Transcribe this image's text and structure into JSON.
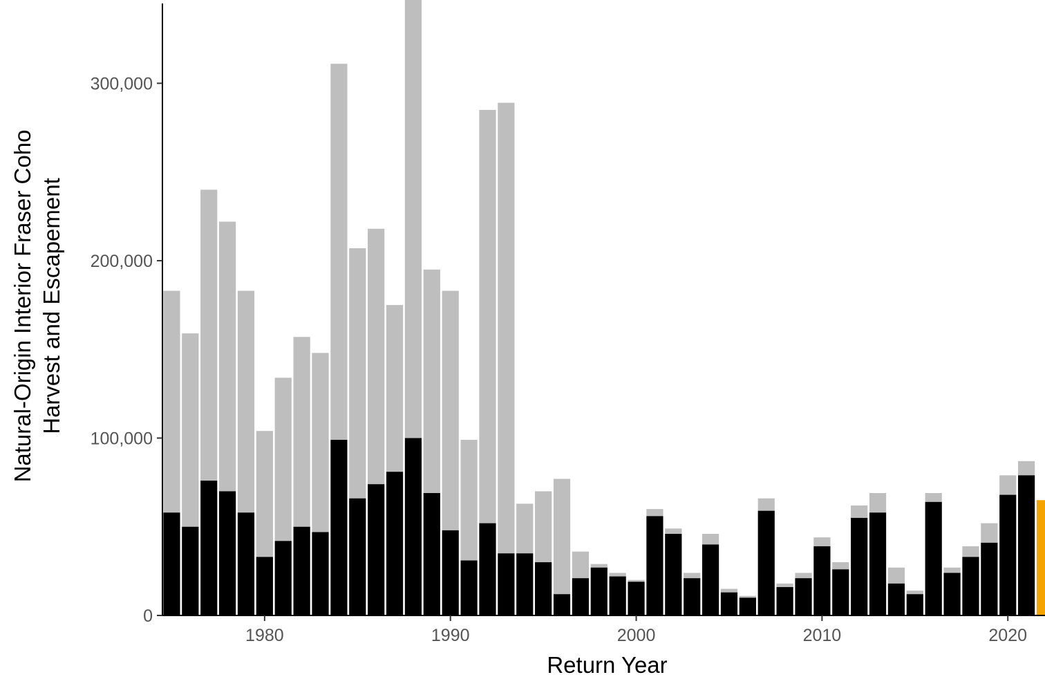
{
  "chart_data": {
    "type": "bar",
    "stacked": true,
    "xlabel": "Return Year",
    "ylabel": [
      "Natural-Origin Interior Fraser Coho",
      "Harvest and Escapement"
    ],
    "xlim": [
      1974.5,
      2022
    ],
    "ylim": [
      0,
      345000
    ],
    "x_ticks": [
      1980,
      1990,
      2000,
      2010,
      2020
    ],
    "y_ticks": [
      {
        "value": 0,
        "label": "0"
      },
      {
        "value": 100000,
        "label": "100,000"
      },
      {
        "value": 200000,
        "label": "200,000"
      },
      {
        "value": 300000,
        "label": "300,000"
      }
    ],
    "grid": false,
    "colors": {
      "escapement": "#000000",
      "harvest": "#bebebe",
      "highlight": "#f5a300"
    },
    "years": [
      1975,
      1976,
      1977,
      1978,
      1979,
      1980,
      1981,
      1982,
      1983,
      1984,
      1985,
      1986,
      1987,
      1988,
      1989,
      1990,
      1991,
      1992,
      1993,
      1994,
      1995,
      1996,
      1997,
      1998,
      1999,
      2000,
      2001,
      2002,
      2003,
      2004,
      2005,
      2006,
      2007,
      2008,
      2009,
      2010,
      2011,
      2012,
      2013,
      2014,
      2015,
      2016,
      2017,
      2018,
      2019,
      2020,
      2021,
      2022
    ],
    "series": [
      {
        "key": "escapement",
        "values": [
          58000,
          50000,
          76000,
          70000,
          58000,
          33000,
          42000,
          50000,
          47000,
          99000,
          66000,
          74000,
          81000,
          100000,
          69000,
          48000,
          31000,
          52000,
          35000,
          35000,
          30000,
          12000,
          21000,
          27000,
          22000,
          19000,
          56000,
          46000,
          21000,
          40000,
          13000,
          10000,
          59000,
          16000,
          21000,
          39000,
          26000,
          55000,
          58000,
          18000,
          12000,
          64000,
          24000,
          33000,
          41000,
          68000,
          79000,
          65000
        ]
      },
      {
        "key": "harvest",
        "values": [
          125000,
          109000,
          164000,
          152000,
          125000,
          71000,
          92000,
          107000,
          101000,
          212000,
          141000,
          144000,
          94000,
          248000,
          126000,
          135000,
          68000,
          233000,
          254000,
          28000,
          40000,
          65000,
          15000,
          2000,
          2000,
          1000,
          4000,
          3000,
          3000,
          6000,
          2000,
          1000,
          7000,
          2000,
          3000,
          5000,
          4000,
          7000,
          11000,
          9000,
          2000,
          5000,
          3000,
          6000,
          11000,
          11000,
          8000,
          0
        ]
      }
    ],
    "highlight_year": 2022
  }
}
